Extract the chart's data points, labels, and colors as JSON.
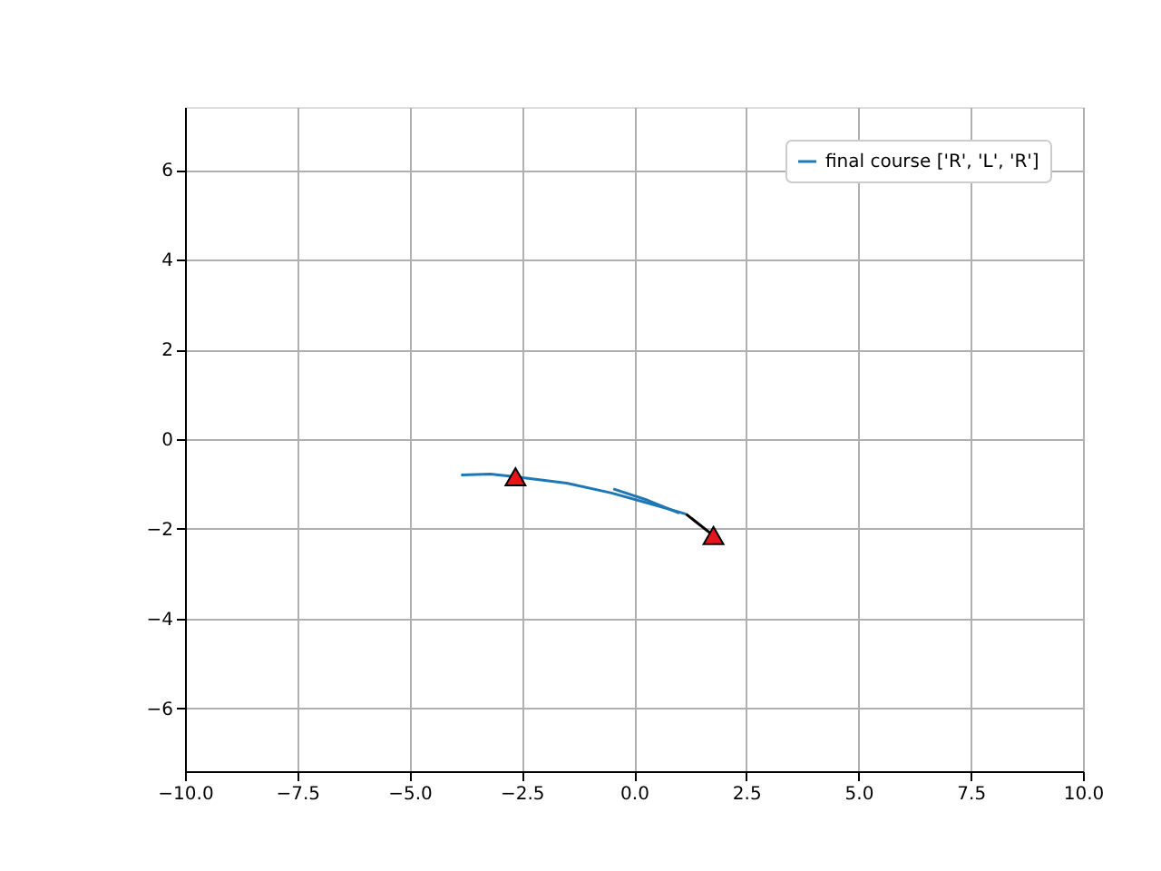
{
  "chart_data": {
    "type": "line",
    "xlim": [
      -10,
      10
    ],
    "ylim": [
      -7.4,
      7.4
    ],
    "xticks": [
      {
        "value": -10,
        "label": "−10.0"
      },
      {
        "value": -7.5,
        "label": "−7.5"
      },
      {
        "value": -5,
        "label": "−5.0"
      },
      {
        "value": -2.5,
        "label": "−2.5"
      },
      {
        "value": 0,
        "label": "0.0"
      },
      {
        "value": 2.5,
        "label": "2.5"
      },
      {
        "value": 5,
        "label": "5.0"
      },
      {
        "value": 7.5,
        "label": "7.5"
      },
      {
        "value": 10,
        "label": "10.0"
      }
    ],
    "yticks": [
      {
        "value": -6,
        "label": "−6"
      },
      {
        "value": -4,
        "label": "−4"
      },
      {
        "value": -2,
        "label": "−2"
      },
      {
        "value": 0,
        "label": "0"
      },
      {
        "value": 2,
        "label": "2"
      },
      {
        "value": 4,
        "label": "4"
      },
      {
        "value": 6,
        "label": "6"
      }
    ],
    "grid": true,
    "legend": "top right",
    "series": [
      {
        "name": "final course ['R', 'L', 'R']",
        "color": "#1f77b4",
        "x": [
          -3.85,
          -3.2,
          -2.64,
          -1.5,
          -0.5,
          0.4,
          1.16
        ],
        "values": [
          -0.8,
          -0.78,
          -0.84,
          -0.98,
          -1.2,
          -1.45,
          -1.67
        ]
      },
      {
        "color": "#1f77b4",
        "x": [
          -0.46,
          0.3,
          1.01
        ],
        "values": [
          -1.11,
          -1.36,
          -1.65
        ]
      },
      {
        "color": "#000000",
        "x": [
          1.16,
          1.77
        ],
        "values": [
          -1.67,
          -2.15
        ]
      },
      {
        "type": "scatter",
        "marker": "triangle",
        "color": "#e8141c",
        "x": [
          -2.64
        ],
        "values": [
          -0.84
        ]
      },
      {
        "type": "scatter",
        "marker": "triangle",
        "color": "#e8141c",
        "x": [
          1.77
        ],
        "values": [
          -2.15
        ]
      }
    ]
  }
}
